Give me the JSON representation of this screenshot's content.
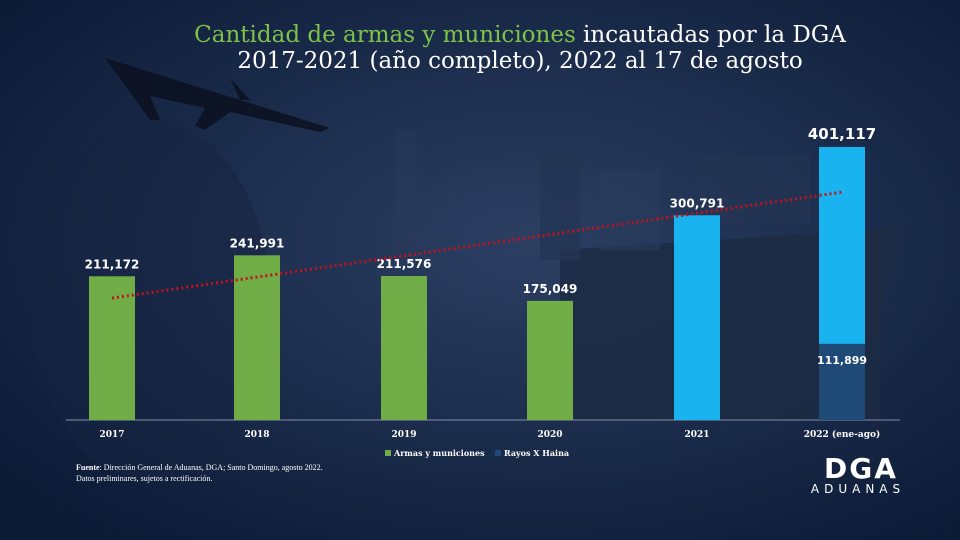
{
  "title": {
    "highlight": "Cantidad de armas y municiones",
    "rest": " incautadas por la DGA",
    "line2": "2017-2021 (año completo), 2022 al 17 de agosto"
  },
  "chart_data": {
    "type": "bar",
    "categories": [
      "2017",
      "2018",
      "2019",
      "2020",
      "2021",
      "2022 (ene-ago)"
    ],
    "series": [
      {
        "name": "Armas y municiones",
        "values": [
          211172,
          241991,
          211576,
          175049,
          null,
          null
        ],
        "color": "#70ad47"
      },
      {
        "name": "",
        "values": [
          null,
          null,
          null,
          null,
          300791,
          289218
        ],
        "color": "#19b4ef"
      },
      {
        "name": "Rayos X Haina",
        "values": [
          null,
          null,
          null,
          null,
          null,
          111899
        ],
        "color": "#1f4a78"
      }
    ],
    "value_labels": [
      "211,172",
      "241,991",
      "211,576",
      "175,049",
      "300,791",
      "401,117"
    ],
    "segment_label": "111,899",
    "trendline": {
      "style": "dotted",
      "color": "#c0121b"
    },
    "ylim": [
      0,
      401117
    ],
    "legend_placement": "bottom",
    "grid": false
  },
  "legend": [
    {
      "label": "Armas y municiones",
      "color": "#70ad47"
    },
    {
      "label": "Rayos X Haina",
      "color": "#1f4a78"
    }
  ],
  "source": {
    "label": "Fuente",
    "text": ": Dirección General de Aduanas, DGA; Santo Domingo, agosto 2022.",
    "line2": "Datos preliminares, sujetos a rectificación."
  },
  "logo": {
    "mark": "DGA",
    "text": "ADUANAS"
  }
}
